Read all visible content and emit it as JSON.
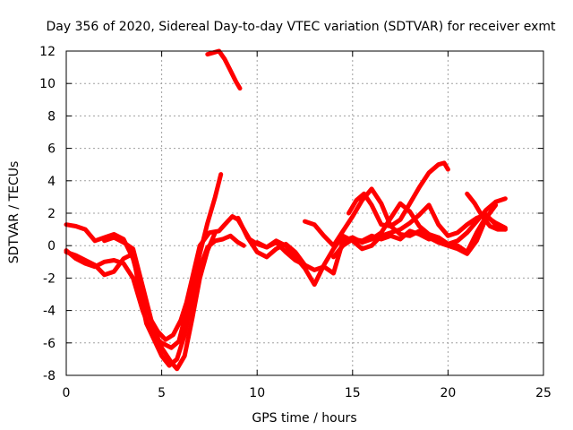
{
  "chart_data": {
    "type": "line",
    "title": "Day 356 of 2020, Sidereal Day-to-day VTEC variation (SDTVAR) for receiver exmt",
    "xlabel": "GPS time / hours",
    "ylabel": "SDTVAR / TECUs",
    "xlim": [
      0,
      25
    ],
    "ylim": [
      -8,
      12
    ],
    "xticks": [
      0,
      5,
      10,
      15,
      20,
      25
    ],
    "yticks": [
      -8,
      -6,
      -4,
      -2,
      0,
      2,
      4,
      6,
      8,
      10,
      12
    ],
    "xtick_labels": [
      "0",
      "5",
      "10",
      "15",
      "20",
      "25"
    ],
    "ytick_labels": [
      "-8",
      "-6",
      "-4",
      "-2",
      "0",
      "2",
      "4",
      "6",
      "8",
      "10",
      "12"
    ],
    "grid": true,
    "color": "#ff0000",
    "series": [
      {
        "name": "trace-1",
        "x": [
          0.0,
          0.5,
          1.0,
          1.5,
          2.0,
          2.5,
          3.0,
          3.5,
          4.0,
          4.4,
          4.8,
          5.2,
          5.6,
          6.0,
          6.3,
          6.7,
          7.0,
          7.5,
          8.0,
          8.3,
          8.7,
          9.0,
          9.3,
          9.6,
          10.0,
          10.5,
          11.0,
          11.5,
          12.0,
          12.5
        ],
        "y": [
          1.3,
          1.2,
          1.0,
          0.3,
          0.5,
          0.7,
          0.4,
          -0.8,
          -3.0,
          -4.5,
          -5.3,
          -5.8,
          -5.5,
          -4.6,
          -3.5,
          -1.5,
          0.0,
          0.8,
          0.9,
          1.3,
          1.8,
          1.6,
          1.0,
          0.4,
          0.1,
          -0.1,
          0.2,
          -0.4,
          -0.9,
          -1.2
        ]
      },
      {
        "name": "trace-2",
        "x": [
          0.0,
          0.5,
          1.0,
          1.5,
          2.0,
          2.5,
          3.0,
          3.5,
          4.0,
          4.5,
          5.0,
          5.5,
          5.9,
          6.2,
          6.6,
          7.0,
          7.4,
          7.8,
          8.1
        ],
        "y": [
          -0.3,
          -0.8,
          -1.1,
          -1.3,
          -1.0,
          -0.9,
          -1.1,
          -2.0,
          -4.0,
          -5.5,
          -6.0,
          -6.3,
          -5.9,
          -4.5,
          -2.5,
          -0.5,
          1.4,
          3.0,
          4.4
        ]
      },
      {
        "name": "trace-3",
        "x": [
          0.0,
          0.5,
          1.0,
          1.5,
          2.0,
          2.5,
          3.0,
          3.5,
          3.8,
          4.2,
          4.6,
          5.0,
          5.4,
          5.8,
          6.2,
          6.6,
          7.0,
          7.4,
          7.8,
          8.2,
          8.6,
          9.0,
          9.3
        ],
        "y": [
          -0.4,
          -0.6,
          -0.9,
          -1.2,
          -1.8,
          -1.6,
          -0.8,
          -0.5,
          -2.5,
          -4.8,
          -5.8,
          -6.8,
          -7.4,
          -7.0,
          -5.5,
          -3.2,
          -1.4,
          -0.1,
          0.3,
          0.4,
          0.6,
          0.2,
          0.0
        ]
      },
      {
        "name": "trace-4",
        "x": [
          2.0,
          2.5,
          3.0,
          3.5,
          4.0,
          4.5,
          5.0,
          5.5,
          5.8,
          6.2,
          6.6,
          7.0,
          7.4,
          7.8
        ],
        "y": [
          0.3,
          0.5,
          0.2,
          -0.2,
          -2.5,
          -4.8,
          -6.3,
          -7.2,
          -7.6,
          -6.8,
          -4.5,
          -2.0,
          -0.3,
          0.8
        ]
      },
      {
        "name": "trace-5",
        "x": [
          7.4,
          7.7,
          8.0,
          8.3,
          8.6,
          8.9,
          9.1
        ],
        "y": [
          11.8,
          11.9,
          12.0,
          11.5,
          10.8,
          10.1,
          9.7
        ]
      },
      {
        "name": "trace-6",
        "x": [
          9.0,
          9.5,
          10.0,
          10.5,
          11.0,
          11.5,
          12.0,
          12.5,
          13.0,
          13.5,
          14.0,
          14.5,
          15.0,
          15.5,
          16.0,
          16.5,
          17.0,
          17.5,
          18.0,
          18.5,
          19.0,
          19.5,
          20.0,
          20.5,
          21.0,
          21.5,
          22.0,
          22.5,
          23.0
        ],
        "y": [
          1.7,
          0.5,
          -0.4,
          -0.7,
          -0.2,
          0.1,
          -0.4,
          -1.2,
          -1.5,
          -1.3,
          -1.7,
          0.3,
          0.5,
          0.2,
          0.4,
          0.8,
          1.7,
          2.6,
          2.1,
          1.2,
          0.7,
          0.5,
          0.1,
          0.3,
          0.8,
          1.5,
          2.2,
          2.7,
          2.9
        ]
      },
      {
        "name": "trace-7",
        "x": [
          10.0,
          10.5,
          11.0,
          11.5,
          12.0,
          12.5,
          13.0,
          13.5,
          14.0,
          14.5,
          15.0,
          15.5,
          16.0,
          16.5,
          17.0,
          17.5,
          18.0,
          18.5,
          19.0,
          19.5,
          20.0,
          20.5,
          21.0,
          21.5,
          22.0,
          22.5,
          23.0
        ],
        "y": [
          0.2,
          -0.1,
          0.3,
          0.0,
          -0.7,
          -1.4,
          -2.4,
          -1.2,
          -0.2,
          0.6,
          0.3,
          -0.2,
          0.0,
          0.6,
          0.8,
          1.0,
          1.4,
          1.9,
          2.5,
          1.3,
          0.6,
          0.8,
          1.3,
          1.7,
          1.9,
          1.3,
          1.0
        ]
      },
      {
        "name": "trace-8",
        "x": [
          12.5,
          13.0,
          13.5,
          14.0,
          14.5,
          15.0,
          15.5,
          16.0,
          16.5,
          17.0,
          17.5,
          18.0,
          18.5,
          19.0,
          19.5,
          20.0,
          20.5,
          21.0,
          21.5,
          22.0,
          22.5
        ],
        "y": [
          1.5,
          1.3,
          0.6,
          0.0,
          0.9,
          1.8,
          2.8,
          3.5,
          2.6,
          1.2,
          0.7,
          0.6,
          0.9,
          0.5,
          0.2,
          0.0,
          -0.2,
          -0.5,
          0.3,
          1.7,
          2.5
        ]
      },
      {
        "name": "trace-9",
        "x": [
          14.8,
          15.2,
          15.6,
          16.0,
          16.5,
          17.0,
          17.5,
          18.0,
          18.5,
          19.0,
          19.5,
          19.8,
          20.0
        ],
        "y": [
          2.0,
          2.8,
          3.2,
          2.5,
          1.3,
          1.2,
          1.6,
          2.6,
          3.6,
          4.5,
          5.0,
          5.1,
          4.7
        ]
      },
      {
        "name": "trace-10",
        "x": [
          14.0,
          14.5,
          15.0,
          15.5,
          16.0,
          16.5,
          17.0,
          17.5,
          18.0,
          18.5,
          19.0,
          19.5,
          20.0,
          20.5,
          21.0,
          21.5,
          22.0,
          22.5,
          23.0
        ],
        "y": [
          -0.7,
          0.0,
          0.4,
          0.3,
          0.6,
          0.4,
          0.6,
          0.4,
          0.9,
          0.7,
          0.4,
          0.5,
          0.1,
          0.0,
          -0.4,
          0.8,
          1.8,
          1.4,
          1.1
        ]
      },
      {
        "name": "trace-11",
        "x": [
          21.0,
          21.4,
          21.8,
          22.2,
          22.6,
          23.0
        ],
        "y": [
          3.2,
          2.6,
          1.8,
          1.2,
          1.0,
          1.0
        ]
      }
    ]
  }
}
